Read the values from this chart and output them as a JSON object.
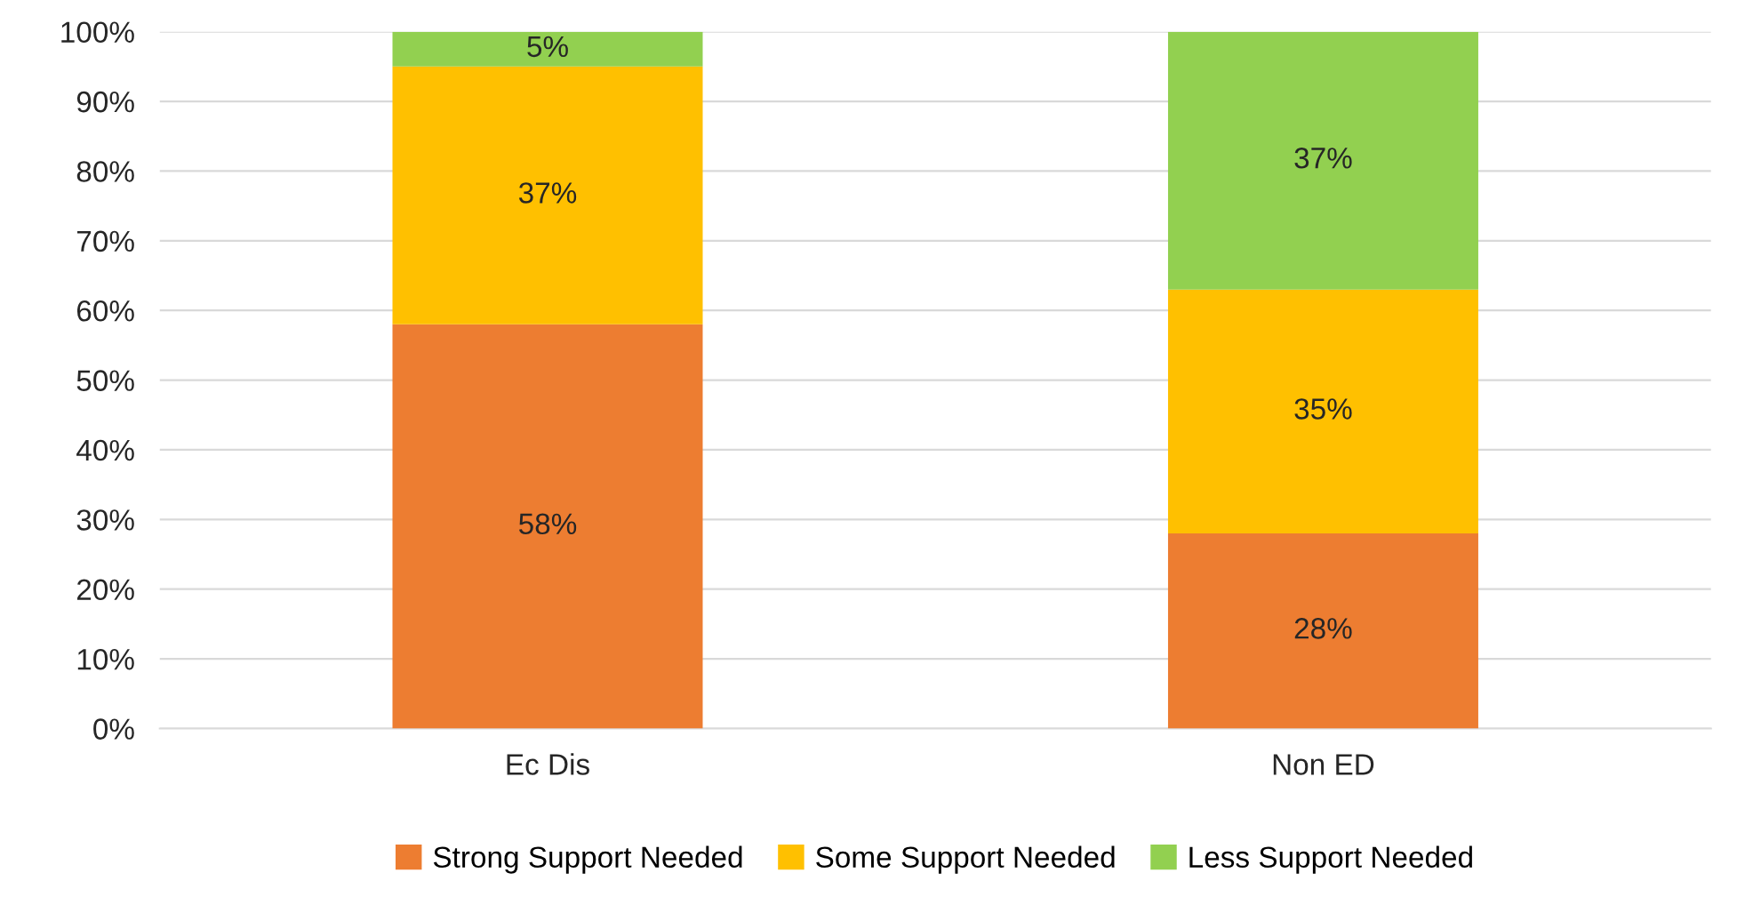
{
  "chart_data": {
    "type": "bar",
    "stacked": true,
    "categories": [
      "Ec Dis",
      "Non ED"
    ],
    "series": [
      {
        "name": "Strong Support Needed",
        "color": "#ed7d31",
        "values": [
          58,
          28
        ],
        "value_labels": [
          "58%",
          "28%"
        ]
      },
      {
        "name": "Some Support Needed",
        "color": "#ffc000",
        "values": [
          37,
          35
        ],
        "value_labels": [
          "37%",
          "35%"
        ]
      },
      {
        "name": "Less Support Needed",
        "color": "#92d050",
        "values": [
          5,
          37
        ],
        "value_labels": [
          "5%",
          "37%"
        ]
      }
    ],
    "ylim": [
      0,
      100
    ],
    "yticks": [
      {
        "value": 0,
        "label": "0%"
      },
      {
        "value": 10,
        "label": "10%"
      },
      {
        "value": 20,
        "label": "20%"
      },
      {
        "value": 30,
        "label": "30%"
      },
      {
        "value": 40,
        "label": "40%"
      },
      {
        "value": 50,
        "label": "50%"
      },
      {
        "value": 60,
        "label": "60%"
      },
      {
        "value": 70,
        "label": "70%"
      },
      {
        "value": 80,
        "label": "80%"
      },
      {
        "value": 90,
        "label": "90%"
      },
      {
        "value": 100,
        "label": "100%"
      }
    ],
    "grid": "y",
    "legend": "bottom"
  }
}
